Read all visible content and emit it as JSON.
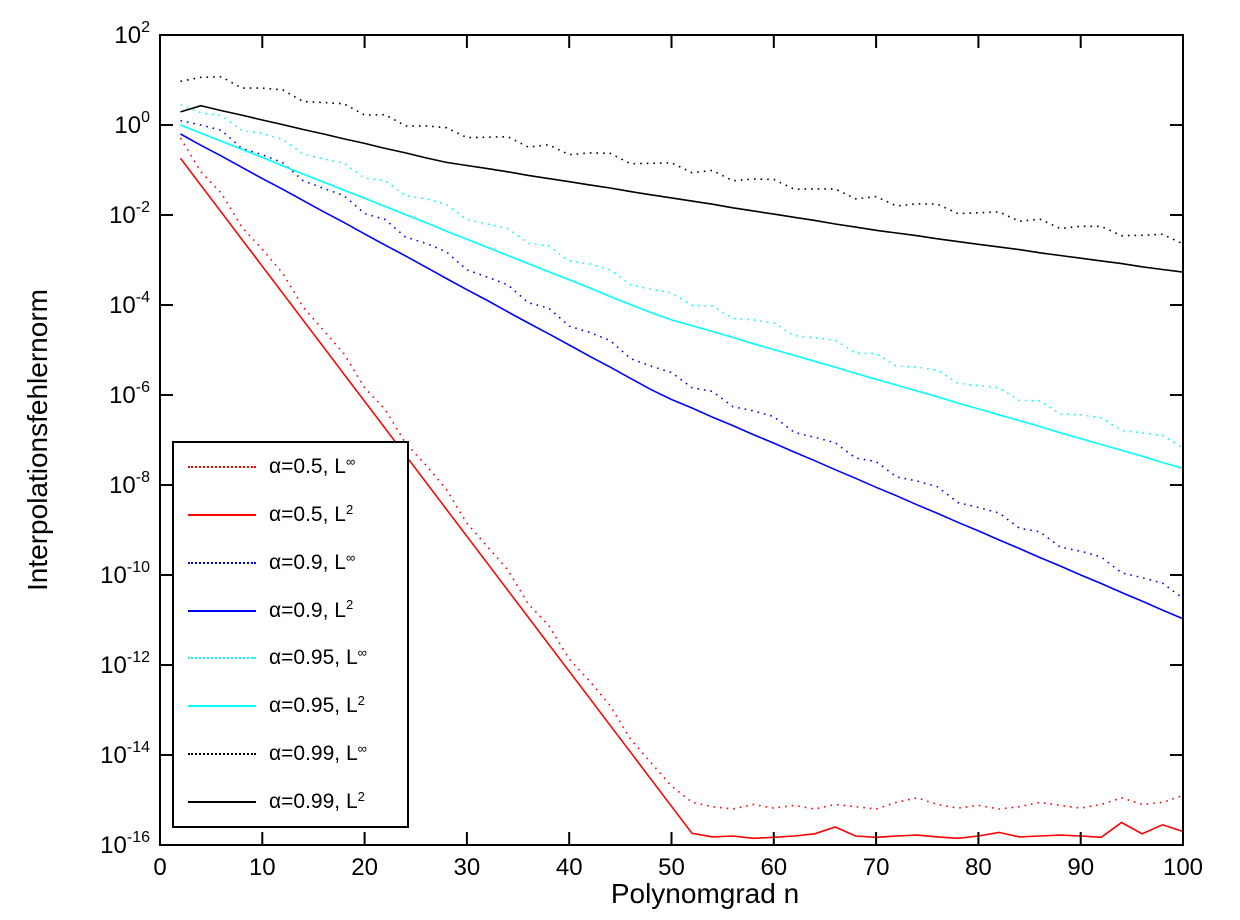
{
  "chart_data": {
    "type": "line",
    "title": "",
    "xlabel": "Polynomgrad n",
    "ylabel": "Interpolationsfehlernorm",
    "x_range": [
      0,
      100
    ],
    "x_ticks": [
      0,
      10,
      20,
      30,
      40,
      50,
      60,
      70,
      80,
      90,
      100
    ],
    "y_scale": "log10",
    "ylim_exponents": [
      -16,
      2
    ],
    "y_tick_exponents": [
      2,
      0,
      -2,
      -4,
      -6,
      -8,
      -10,
      -12,
      -14,
      -16
    ],
    "grid": false,
    "legend_position": "lower-left",
    "frame_color": "#000000",
    "x": [
      2,
      4,
      6,
      8,
      10,
      12,
      14,
      16,
      18,
      20,
      22,
      24,
      26,
      28,
      30,
      32,
      34,
      36,
      38,
      40,
      42,
      44,
      46,
      48,
      50,
      52,
      54,
      56,
      58,
      60,
      62,
      64,
      66,
      68,
      70,
      72,
      74,
      76,
      78,
      80,
      82,
      84,
      86,
      88,
      90,
      92,
      94,
      96,
      98,
      100
    ],
    "series": [
      {
        "name": "α=0.5, L∞",
        "legend_base": "α=0.5, L",
        "legend_sup": "∞",
        "color": "#ff0000",
        "line_style": "dotted",
        "log10_values": [
          -0.29,
          -1.04,
          -1.52,
          -2.27,
          -2.76,
          -3.3,
          -4.05,
          -4.57,
          -5.09,
          -5.84,
          -6.32,
          -7.07,
          -7.56,
          -8.1,
          -8.85,
          -9.37,
          -9.89,
          -10.64,
          -11.12,
          -11.87,
          -12.36,
          -12.9,
          -13.65,
          -14.17,
          -14.69,
          -15.05,
          -15.15,
          -15.2,
          -15.1,
          -15.18,
          -15.12,
          -15.2,
          -15.1,
          -15.15,
          -15.2,
          -15.05,
          -14.95,
          -15.1,
          -15.18,
          -15.12,
          -15.2,
          -15.15,
          -15.05,
          -15.12,
          -15.18,
          -15.1,
          -14.95,
          -15.1,
          -15.05,
          -14.9
        ]
      },
      {
        "name": "α=0.5, L²",
        "legend_base": "α=0.5, L",
        "legend_sup": "2",
        "color": "#ff0000",
        "line_style": "solid",
        "log10_values": [
          -0.74,
          -1.34,
          -1.94,
          -2.54,
          -3.14,
          -3.74,
          -4.34,
          -4.94,
          -5.54,
          -6.14,
          -6.74,
          -7.34,
          -7.94,
          -8.54,
          -9.14,
          -9.74,
          -10.34,
          -10.94,
          -11.54,
          -12.14,
          -12.74,
          -13.34,
          -13.94,
          -14.54,
          -15.14,
          -15.74,
          -15.82,
          -15.8,
          -15.85,
          -15.83,
          -15.8,
          -15.75,
          -15.6,
          -15.8,
          -15.83,
          -15.8,
          -15.78,
          -15.82,
          -15.85,
          -15.8,
          -15.72,
          -15.82,
          -15.8,
          -15.78,
          -15.8,
          -15.83,
          -15.5,
          -15.75,
          -15.55,
          -15.7
        ]
      },
      {
        "name": "α=0.9, L∞",
        "legend_base": "α=0.9, L",
        "legend_sup": "∞",
        "color": "#0000ff",
        "line_style": "dotted",
        "log10_values": [
          0.1,
          0.0,
          -0.12,
          -0.52,
          -0.66,
          -0.84,
          -1.24,
          -1.41,
          -1.57,
          -1.97,
          -2.1,
          -2.49,
          -2.63,
          -2.82,
          -3.22,
          -3.38,
          -3.55,
          -3.95,
          -4.07,
          -4.47,
          -4.61,
          -4.79,
          -5.19,
          -5.36,
          -5.5,
          -5.84,
          -5.92,
          -6.26,
          -6.35,
          -6.48,
          -6.83,
          -6.94,
          -7.06,
          -7.4,
          -7.48,
          -7.82,
          -7.91,
          -8.04,
          -8.39,
          -8.5,
          -8.62,
          -8.96,
          -9.04,
          -9.38,
          -9.47,
          -9.6,
          -9.95,
          -10.06,
          -10.18,
          -10.52
        ]
      },
      {
        "name": "α=0.9, L²",
        "legend_base": "α=0.9, L",
        "legend_sup": "2",
        "color": "#0000ff",
        "line_style": "solid",
        "log10_values": [
          -0.2,
          -0.45,
          -0.69,
          -0.94,
          -1.19,
          -1.43,
          -1.68,
          -1.93,
          -2.17,
          -2.42,
          -2.67,
          -2.91,
          -3.16,
          -3.41,
          -3.66,
          -3.9,
          -4.15,
          -4.4,
          -4.64,
          -4.89,
          -5.14,
          -5.38,
          -5.63,
          -5.88,
          -6.1,
          -6.29,
          -6.49,
          -6.68,
          -6.88,
          -7.07,
          -7.27,
          -7.46,
          -7.66,
          -7.85,
          -8.05,
          -8.24,
          -8.44,
          -8.63,
          -8.83,
          -9.02,
          -9.22,
          -9.41,
          -9.61,
          -9.8,
          -10.0,
          -10.19,
          -10.39,
          -10.58,
          -10.78,
          -10.97
        ]
      },
      {
        "name": "α=0.95, L∞",
        "legend_base": "α=0.95, L",
        "legend_sup": "∞",
        "color": "#00ffff",
        "line_style": "dotted",
        "log10_values": [
          0.45,
          0.27,
          0.21,
          -0.12,
          -0.19,
          -0.32,
          -0.65,
          -0.75,
          -0.85,
          -1.18,
          -1.24,
          -1.57,
          -1.64,
          -1.77,
          -2.1,
          -2.2,
          -2.3,
          -2.63,
          -2.69,
          -3.02,
          -3.09,
          -3.22,
          -3.55,
          -3.65,
          -3.73,
          -4.01,
          -4.02,
          -4.3,
          -4.33,
          -4.4,
          -4.68,
          -4.73,
          -4.78,
          -5.07,
          -5.08,
          -5.36,
          -5.38,
          -5.45,
          -5.74,
          -5.79,
          -5.84,
          -6.12,
          -6.13,
          -6.42,
          -6.44,
          -6.51,
          -6.79,
          -6.84,
          -6.9,
          -7.18
        ]
      },
      {
        "name": "α=0.95, L²",
        "legend_base": "α=0.95, L",
        "legend_sup": "2",
        "color": "#00ffff",
        "line_style": "solid",
        "log10_values": [
          0.0,
          -0.18,
          -0.36,
          -0.54,
          -0.72,
          -0.91,
          -1.09,
          -1.27,
          -1.45,
          -1.63,
          -1.81,
          -1.99,
          -2.17,
          -2.36,
          -2.54,
          -2.72,
          -2.9,
          -3.08,
          -3.26,
          -3.44,
          -3.62,
          -3.81,
          -3.99,
          -4.17,
          -4.33,
          -4.46,
          -4.59,
          -4.72,
          -4.86,
          -4.99,
          -5.12,
          -5.25,
          -5.38,
          -5.52,
          -5.65,
          -5.78,
          -5.91,
          -6.04,
          -6.18,
          -6.31,
          -6.44,
          -6.57,
          -6.7,
          -6.84,
          -6.97,
          -7.1,
          -7.23,
          -7.36,
          -7.5,
          -7.63
        ]
      },
      {
        "name": "α=0.99, L∞",
        "legend_base": "α=0.99, L",
        "legend_sup": "∞",
        "color": "#000000",
        "line_style": "dotted",
        "log10_values": [
          0.97,
          1.06,
          1.07,
          0.82,
          0.82,
          0.78,
          0.52,
          0.5,
          0.47,
          0.22,
          0.23,
          -0.02,
          -0.02,
          -0.06,
          -0.28,
          -0.27,
          -0.26,
          -0.49,
          -0.44,
          -0.66,
          -0.62,
          -0.63,
          -0.86,
          -0.85,
          -0.84,
          -1.06,
          -1.01,
          -1.24,
          -1.2,
          -1.21,
          -1.43,
          -1.42,
          -1.42,
          -1.64,
          -1.59,
          -1.8,
          -1.75,
          -1.76,
          -1.97,
          -1.95,
          -1.93,
          -2.14,
          -2.09,
          -2.3,
          -2.25,
          -2.25,
          -2.46,
          -2.45,
          -2.43,
          -2.64
        ]
      },
      {
        "name": "α=0.99, L²",
        "legend_base": "α=0.99, L",
        "legend_sup": "2",
        "color": "#000000",
        "line_style": "solid",
        "log10_values": [
          0.29,
          0.43,
          0.32,
          0.22,
          0.11,
          0.01,
          -0.1,
          -0.2,
          -0.31,
          -0.41,
          -0.52,
          -0.62,
          -0.73,
          -0.83,
          -0.9,
          -0.97,
          -1.04,
          -1.12,
          -1.19,
          -1.26,
          -1.33,
          -1.4,
          -1.48,
          -1.55,
          -1.62,
          -1.69,
          -1.76,
          -1.84,
          -1.91,
          -1.98,
          -2.05,
          -2.12,
          -2.2,
          -2.27,
          -2.34,
          -2.4,
          -2.46,
          -2.53,
          -2.59,
          -2.65,
          -2.71,
          -2.77,
          -2.84,
          -2.9,
          -2.96,
          -3.02,
          -3.08,
          -3.15,
          -3.21,
          -3.27
        ]
      }
    ]
  }
}
